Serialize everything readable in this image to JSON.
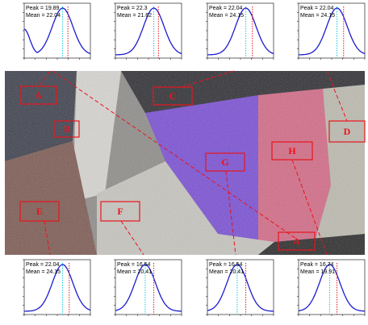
{
  "plots": [
    {
      "peak": "Peak = 19.89",
      "mean": "Mean = 22.04"
    },
    {
      "peak": "Peak = 22.3",
      "mean": "Mean = 21.62"
    },
    {
      "peak": "Peak = 22.04",
      "mean": "Mean = 24.15"
    },
    {
      "peak": "Peak = 22.04",
      "mean": "Mean = 24.15"
    },
    {
      "peak": "Peak = 22.04",
      "mean": "Mean = 24.15"
    },
    {
      "peak": "Peak = 16.54",
      "mean": "Mean = 20.41"
    },
    {
      "peak": "Peak = 16.54",
      "mean": "Mean = 20.41"
    },
    {
      "peak": "Peak = 16.74",
      "mean": "Mean = 19.91"
    }
  ],
  "regions": [
    "A",
    "B",
    "C",
    "D",
    "G",
    "H",
    "E",
    "F",
    "A"
  ]
}
